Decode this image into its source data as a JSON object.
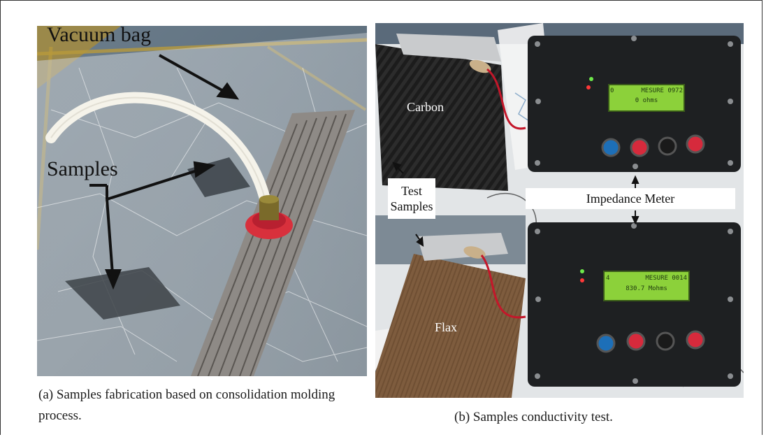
{
  "figure": {
    "panel_a": {
      "labels": {
        "vacuum_bag": "Vacuum bag",
        "samples": "Samples"
      },
      "caption": "(a) Samples fabrication based on consolidation molding process."
    },
    "panel_b": {
      "labels": {
        "carbon": "Carbon",
        "flax": "Flax",
        "test_samples": "Test Samples",
        "impedance_meter": "Impedance Meter"
      },
      "lcd_top": {
        "line1_left": "0",
        "line1_right": "MESURE 0972",
        "line2": "0 ohms"
      },
      "lcd_bottom": {
        "line1_left": "4",
        "line1_right": "MESURE 0014",
        "line2": "830.7 Mohms"
      },
      "caption": "(b) Samples conductivity test."
    }
  },
  "colors": {
    "lcd_green": "#8cd13a",
    "button_blue": "#1d6fb8",
    "button_red": "#d62a3c",
    "button_black": "#1a1a1a"
  }
}
